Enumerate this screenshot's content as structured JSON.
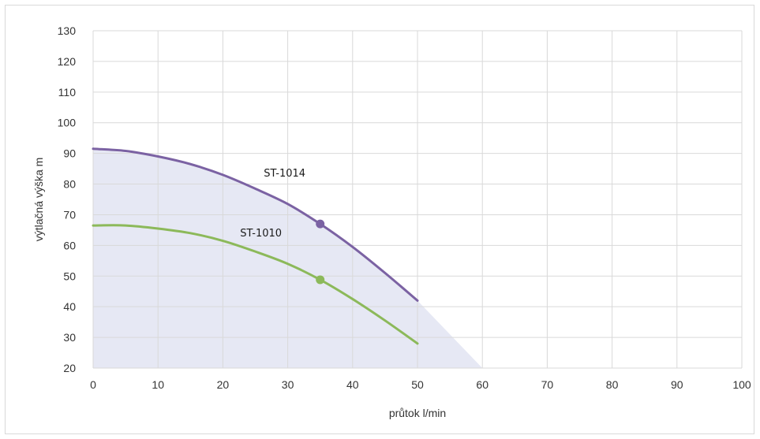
{
  "chart_data": {
    "type": "line",
    "title": "",
    "xlabel": "průtok l/min",
    "ylabel": "výtlačná výška m",
    "xlim": [
      0,
      100
    ],
    "ylim": [
      20,
      130
    ],
    "x_ticks": [
      "0",
      "10",
      "20",
      "30",
      "40",
      "50",
      "60",
      "70",
      "80",
      "90",
      "100"
    ],
    "y_ticks": [
      "20",
      "30",
      "40",
      "50",
      "60",
      "70",
      "80",
      "90",
      "100",
      "110",
      "120",
      "130"
    ],
    "grid": true,
    "legend": "none",
    "working_area": {
      "color": "#e6e8f4",
      "boundary": [
        [
          0,
          91.5
        ],
        [
          10,
          89
        ],
        [
          20,
          83
        ],
        [
          30,
          73.5
        ],
        [
          35,
          67
        ],
        [
          40,
          59.5
        ],
        [
          50,
          42
        ],
        [
          60,
          20
        ],
        [
          0,
          20
        ]
      ]
    },
    "series": [
      {
        "name": "ST-1014",
        "color": "#7b62a3",
        "x": [
          0,
          5,
          10,
          15,
          20,
          25,
          30,
          35,
          40,
          45,
          50
        ],
        "y": [
          91.5,
          90.8,
          89,
          86.5,
          83,
          78.5,
          73.5,
          67,
          59.5,
          51,
          42
        ],
        "marker": {
          "x": 35,
          "y": 67
        }
      },
      {
        "name": "ST-1010",
        "color": "#8cb95a",
        "x": [
          0,
          5,
          10,
          15,
          20,
          25,
          30,
          35,
          40,
          45,
          50
        ],
        "y": [
          66.5,
          66.5,
          65.5,
          64,
          61.5,
          58,
          54,
          48.8,
          42.5,
          35.5,
          28
        ],
        "marker": {
          "x": 35,
          "y": 48.8
        }
      }
    ]
  }
}
